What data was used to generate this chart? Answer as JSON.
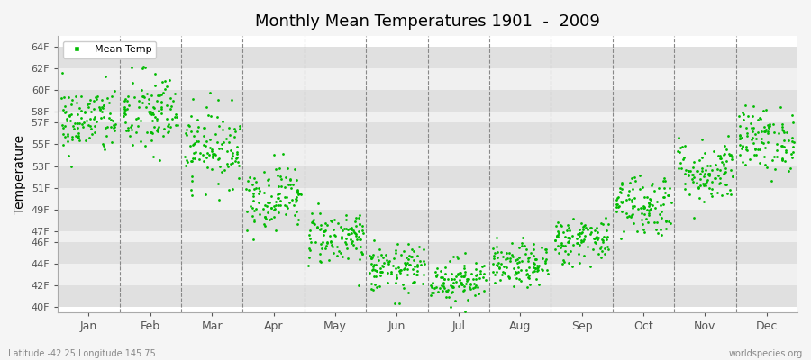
{
  "title": "Monthly Mean Temperatures 1901  -  2009",
  "ylabel": "Temperature",
  "legend_label": "Mean Temp",
  "fig_bg_color": "#f5f5f5",
  "plot_bg_color": "#ffffff",
  "band_color_light": "#f0f0f0",
  "band_color_dark": "#e0e0e0",
  "dot_color": "#00bb00",
  "dot_size": 4,
  "ytick_labels": [
    "40F",
    "42F",
    "44F",
    "46F",
    "47F",
    "49F",
    "51F",
    "53F",
    "55F",
    "57F",
    "58F",
    "60F",
    "62F",
    "64F"
  ],
  "ytick_values": [
    40,
    42,
    44,
    46,
    47,
    49,
    51,
    53,
    55,
    57,
    58,
    60,
    62,
    64
  ],
  "ylim": [
    39.5,
    65.0
  ],
  "month_labels": [
    "Jan",
    "Feb",
    "Mar",
    "Apr",
    "May",
    "Jun",
    "Jul",
    "Aug",
    "Sep",
    "Oct",
    "Nov",
    "Dec"
  ],
  "month_tick_positions": [
    0.5,
    1.5,
    2.5,
    3.5,
    4.5,
    5.5,
    6.5,
    7.5,
    8.5,
    9.5,
    10.5,
    11.5
  ],
  "footnote_left": "Latitude -42.25 Longitude 145.75",
  "footnote_right": "worldspecies.org",
  "num_years": 109,
  "seed": 42,
  "monthly_means": [
    57.2,
    57.8,
    54.8,
    50.2,
    46.5,
    43.5,
    42.5,
    43.8,
    46.2,
    49.5,
    52.5,
    55.5
  ],
  "monthly_stds": [
    1.6,
    2.0,
    1.8,
    1.5,
    1.3,
    1.1,
    1.0,
    1.0,
    1.1,
    1.5,
    1.5,
    1.5
  ]
}
